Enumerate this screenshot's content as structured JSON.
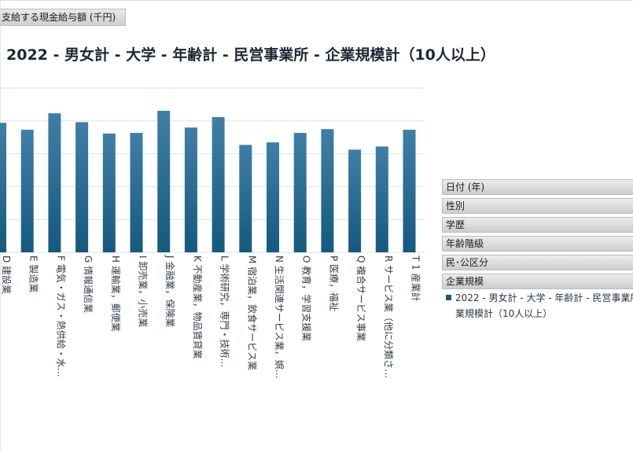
{
  "pivot": {
    "measure_label": "支給する現金給与額 (千円)",
    "filters": [
      "日付 (年)",
      "性別",
      "学歴",
      "年齢階級",
      "民･公区分",
      "企業規模"
    ]
  },
  "chart_data": {
    "type": "bar",
    "title": "2022 - 男女計 - 大学 - 年齢計 - 民営事業所 - 企業規模計（10人以上）",
    "categories": [
      "D 建設業",
      "E 製造業",
      "F 電気・ガス・熱供給・水…",
      "G 情報通信業",
      "H 運輸業，郵便業",
      "I 卸売業，小売業",
      "J 金融業，保険業",
      "K 不動産業，物品賃貸業",
      "L 学術研究，専門・技術…",
      "M 宿泊業，飲食サービス業",
      "N 生活関連サービス業，娯…",
      "O 教育，学習支援業",
      "P 医療，福祉",
      "Q 複合サービス事業",
      "R サービス業（他に分類さ…",
      "T 1 産業計"
    ],
    "series": [
      {
        "name": "2022 - 男女計 - 大学 - 年齢計 - 民営事業所 - 企業規模計（10人以上）",
        "values": [
          410,
          388,
          440,
          412,
          376,
          378,
          448,
          395,
          428,
          340,
          348,
          378,
          390,
          325,
          335,
          388
        ],
        "color": "#15597e"
      }
    ],
    "ylim": [
      0,
      520
    ],
    "grid": true,
    "legend": "right"
  }
}
